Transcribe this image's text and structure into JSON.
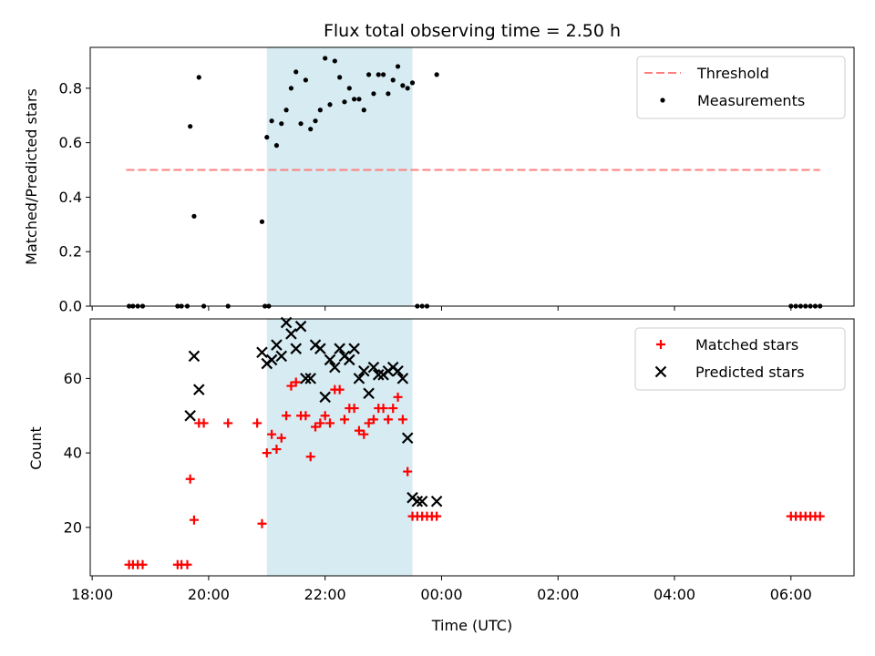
{
  "chart_data": [
    {
      "type": "scatter",
      "title": "Flux total observing time = 2.50 h",
      "ylabel": "Matched/Predicted stars",
      "xlabel": "",
      "ylim": [
        0,
        0.95
      ],
      "xlim": [
        "17:58",
        "07:05"
      ],
      "yticks": [
        "0.0",
        "0.2",
        "0.4",
        "0.6",
        "0.8"
      ],
      "shaded_interval": [
        "21:00",
        "23:30"
      ],
      "legend_position": "top-right",
      "legend": [
        "Threshold",
        "Measurements"
      ],
      "series": [
        {
          "name": "Threshold",
          "kind": "line",
          "style": "dashed",
          "color": "#ff7f7f",
          "x": [
            "18:35",
            "06:30"
          ],
          "y": [
            0.5,
            0.5
          ]
        },
        {
          "name": "Measurements",
          "kind": "scatter",
          "color": "#000000",
          "x": [
            "18:38",
            "18:42",
            "18:47",
            "18:52",
            "19:28",
            "19:32",
            "19:38",
            "19:41",
            "19:45",
            "19:50",
            "19:55",
            "20:20",
            "20:58",
            "21:02",
            "20:55",
            "21:00",
            "21:05",
            "21:10",
            "21:15",
            "21:20",
            "21:25",
            "21:30",
            "21:35",
            "21:40",
            "21:45",
            "21:50",
            "21:55",
            "22:00",
            "22:05",
            "22:10",
            "22:15",
            "22:20",
            "22:25",
            "22:30",
            "22:35",
            "22:40",
            "22:45",
            "22:50",
            "22:55",
            "23:00",
            "23:05",
            "23:10",
            "23:15",
            "23:20",
            "23:25",
            "23:30",
            "23:35",
            "23:40",
            "23:45",
            "23:55",
            "06:00",
            "06:05",
            "06:10",
            "06:15",
            "06:20",
            "06:25",
            "06:30"
          ],
          "y": [
            0,
            0,
            0,
            0,
            0,
            0,
            0,
            0.66,
            0.33,
            0.84,
            0,
            0,
            0,
            0,
            0.31,
            0.62,
            0.68,
            0.59,
            0.67,
            0.72,
            0.8,
            0.86,
            0.67,
            0.83,
            0.65,
            0.68,
            0.72,
            0.91,
            0.74,
            0.9,
            0.84,
            0.75,
            0.8,
            0.76,
            0.76,
            0.72,
            0.85,
            0.78,
            0.85,
            0.85,
            0.78,
            0.83,
            0.88,
            0.81,
            0.8,
            0.82,
            0,
            0,
            0,
            0.85,
            0,
            0,
            0,
            0,
            0,
            0,
            0
          ]
        }
      ]
    },
    {
      "type": "scatter",
      "title": "",
      "ylabel": "Count",
      "xlabel": "Time (UTC)",
      "ylim": [
        7,
        76
      ],
      "xlim": [
        "17:58",
        "07:05"
      ],
      "yticks": [
        "20",
        "40",
        "60"
      ],
      "xticks": [
        "18:00",
        "20:00",
        "22:00",
        "00:00",
        "02:00",
        "04:00",
        "06:00"
      ],
      "shaded_interval": [
        "21:00",
        "23:30"
      ],
      "legend_position": "top-right",
      "legend": [
        "Matched stars",
        "Predicted stars"
      ],
      "series": [
        {
          "name": "Matched stars",
          "marker": "plus",
          "color": "#ff0000",
          "x": [
            "18:38",
            "18:42",
            "18:47",
            "18:52",
            "19:28",
            "19:32",
            "19:38",
            "19:41",
            "19:45",
            "19:50",
            "19:55",
            "20:20",
            "20:50",
            "20:55",
            "21:00",
            "21:05",
            "21:10",
            "21:15",
            "21:20",
            "21:25",
            "21:30",
            "21:35",
            "21:40",
            "21:45",
            "21:50",
            "21:55",
            "22:00",
            "22:05",
            "22:10",
            "22:15",
            "22:20",
            "22:25",
            "22:30",
            "22:35",
            "22:40",
            "22:45",
            "22:50",
            "22:55",
            "23:00",
            "23:05",
            "23:10",
            "23:15",
            "23:20",
            "23:25",
            "23:30",
            "23:35",
            "23:40",
            "23:45",
            "23:50",
            "23:55",
            "06:00",
            "06:05",
            "06:10",
            "06:15",
            "06:20",
            "06:25",
            "06:30"
          ],
          "y": [
            10,
            10,
            10,
            10,
            10,
            10,
            10,
            33,
            22,
            48,
            48,
            48,
            48,
            21,
            40,
            45,
            41,
            44,
            50,
            58,
            59,
            50,
            50,
            39,
            47,
            48,
            50,
            48,
            57,
            57,
            49,
            52,
            52,
            46,
            45,
            48,
            49,
            52,
            52,
            49,
            52,
            55,
            49,
            35,
            23,
            23,
            23,
            23,
            23,
            23,
            23,
            23,
            23,
            23,
            23,
            23,
            23
          ]
        },
        {
          "name": "Predicted stars",
          "marker": "x",
          "color": "#000000",
          "x": [
            "19:41",
            "19:45",
            "19:50",
            "20:55",
            "21:00",
            "21:05",
            "21:10",
            "21:15",
            "21:20",
            "21:25",
            "21:30",
            "21:35",
            "21:40",
            "21:45",
            "21:50",
            "21:55",
            "22:00",
            "22:05",
            "22:10",
            "22:15",
            "22:20",
            "22:25",
            "22:30",
            "22:35",
            "22:40",
            "22:45",
            "22:50",
            "22:55",
            "23:00",
            "23:05",
            "23:10",
            "23:15",
            "23:20",
            "23:25",
            "23:30",
            "23:35",
            "23:40",
            "23:55"
          ],
          "y": [
            50,
            66,
            57,
            67,
            64,
            65,
            69,
            66,
            75,
            72,
            68,
            74,
            60,
            60,
            69,
            68,
            55,
            65,
            63,
            68,
            66,
            65,
            68,
            60,
            62,
            56,
            63,
            61,
            61,
            62,
            63,
            62,
            60,
            44,
            28,
            27,
            27,
            27
          ]
        }
      ]
    }
  ]
}
